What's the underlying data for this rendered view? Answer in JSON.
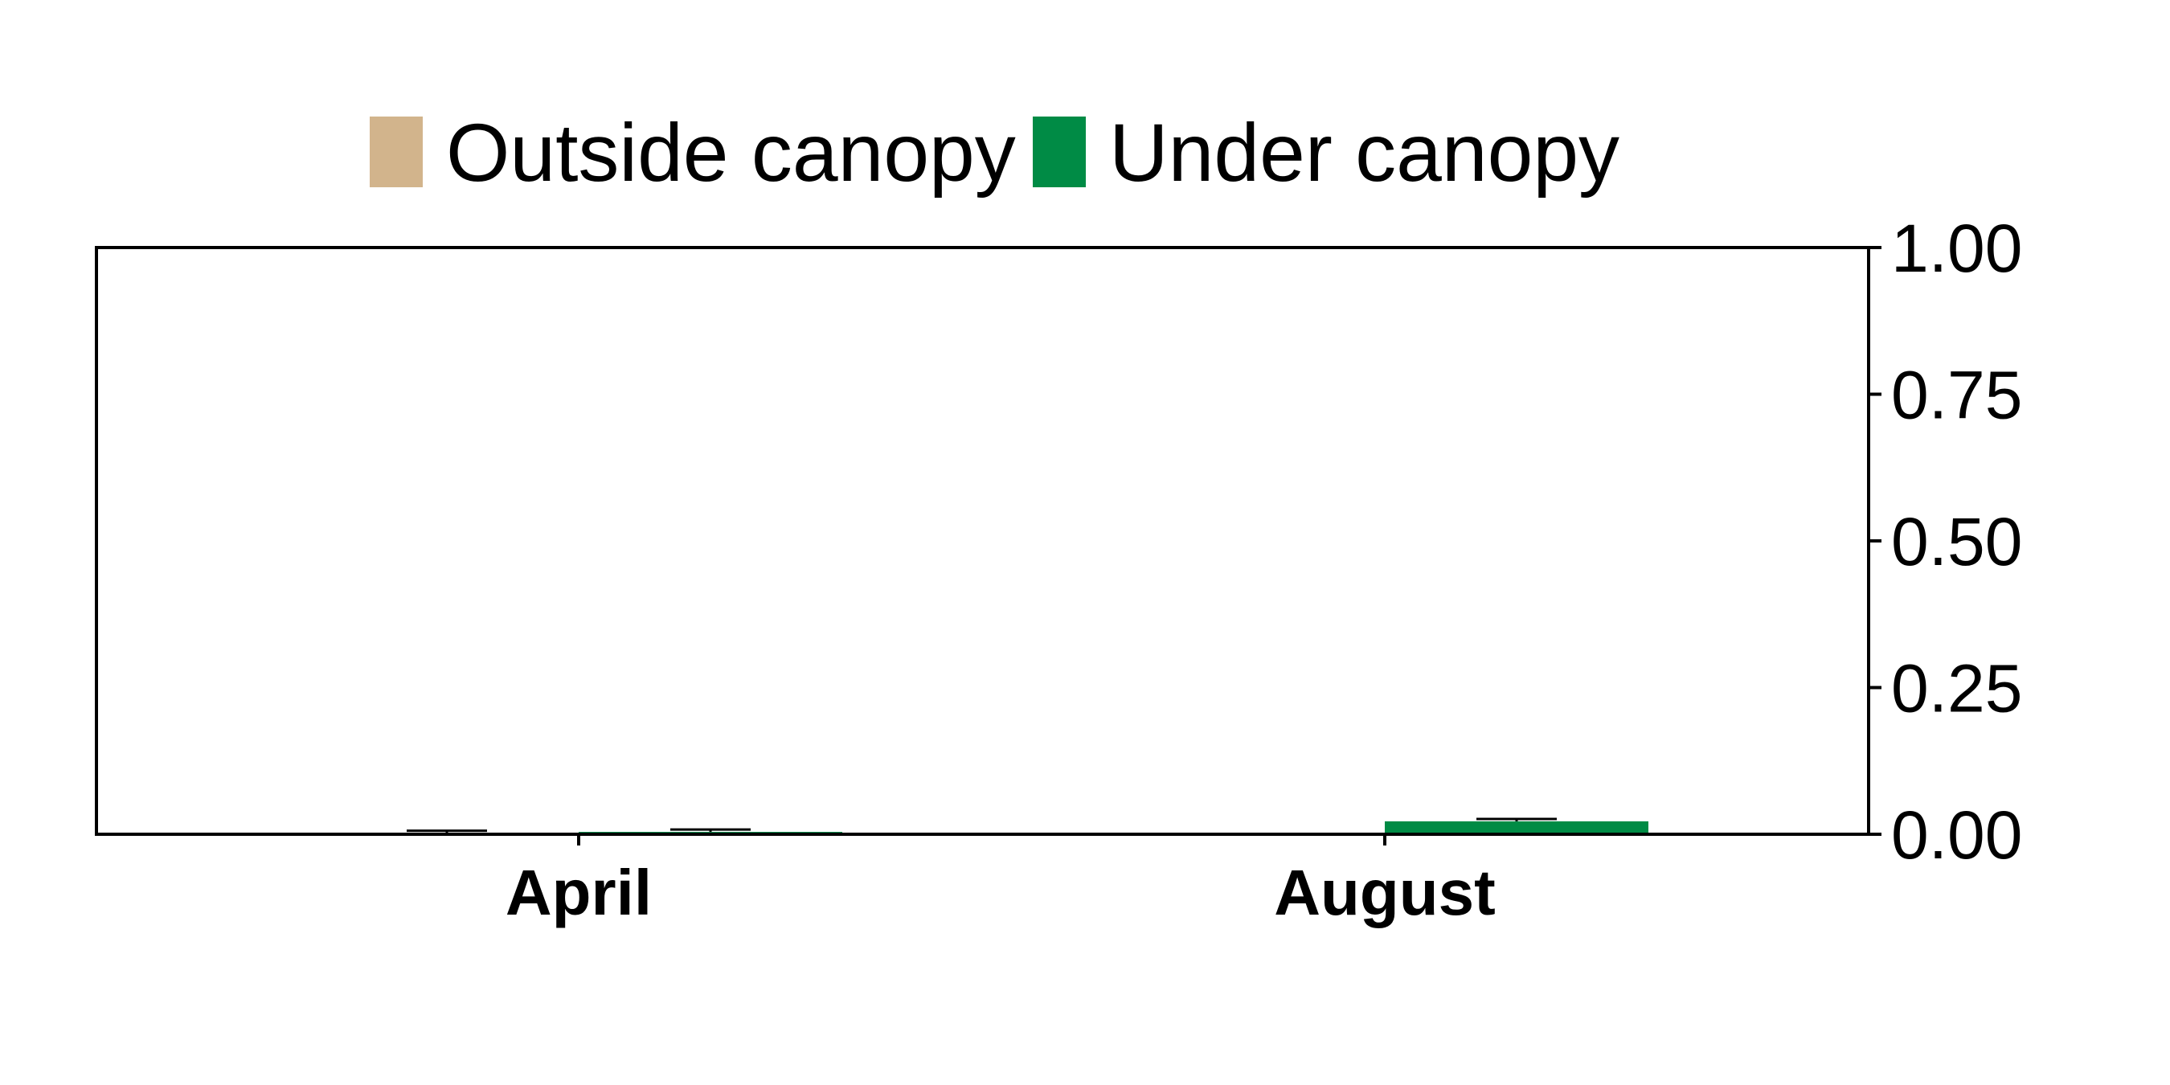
{
  "chart_data": {
    "type": "bar",
    "title": "",
    "xlabel": "",
    "ylabel": "",
    "categories": [
      "April",
      "August"
    ],
    "series": [
      {
        "name": "Outside canopy",
        "color": "#D2B48C",
        "values": [
          0.002,
          0.0
        ],
        "errors": [
          0.004,
          0.0
        ]
      },
      {
        "name": "Under canopy",
        "color": "#008B45",
        "values": [
          0.004,
          0.022
        ],
        "errors": [
          0.004,
          0.004
        ]
      }
    ],
    "ylim": [
      0,
      1
    ],
    "yticks": [
      "0.00",
      "0.25",
      "0.50",
      "0.75",
      "1.00"
    ],
    "y_axis_side": "right",
    "legend_position": "top",
    "grid": false
  }
}
